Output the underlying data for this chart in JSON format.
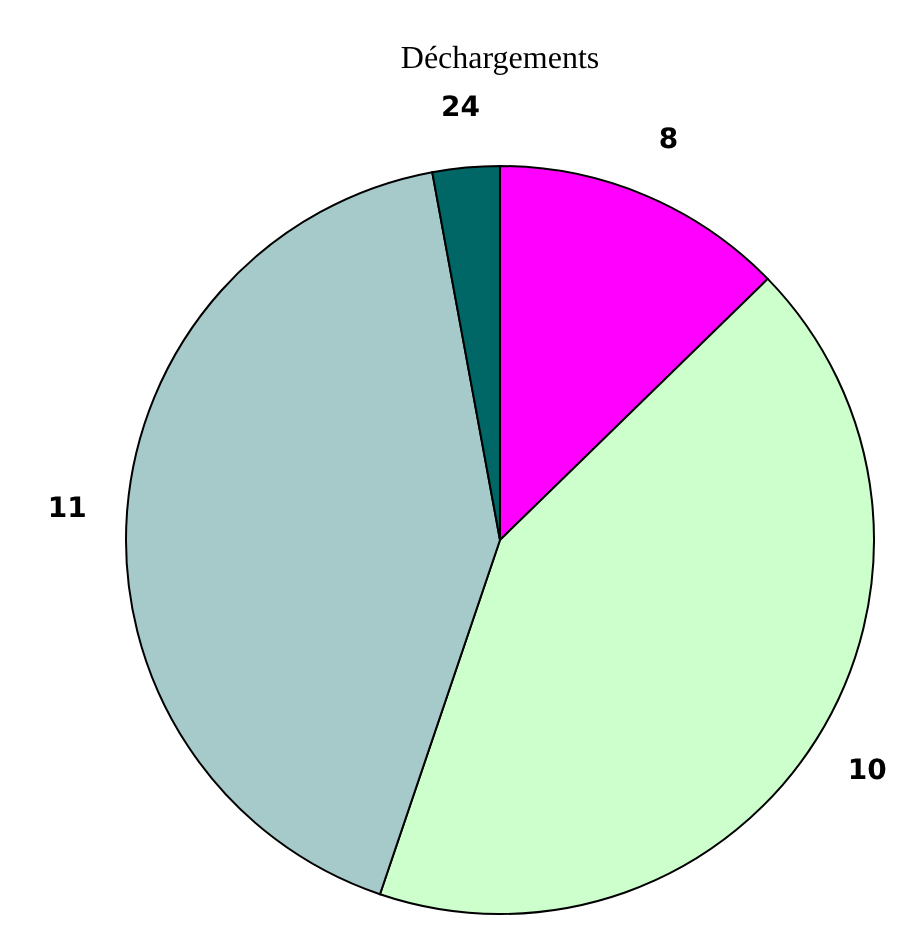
{
  "chart_data": {
    "type": "pie",
    "title": "Déchargements",
    "categories": [
      "8",
      "10",
      "11",
      "24"
    ],
    "values": [
      12.7,
      42.5,
      41.9,
      2.9
    ],
    "colors": [
      "#ff00ff",
      "#ccffcc",
      "#a6caca",
      "#006666"
    ],
    "legend": false
  }
}
